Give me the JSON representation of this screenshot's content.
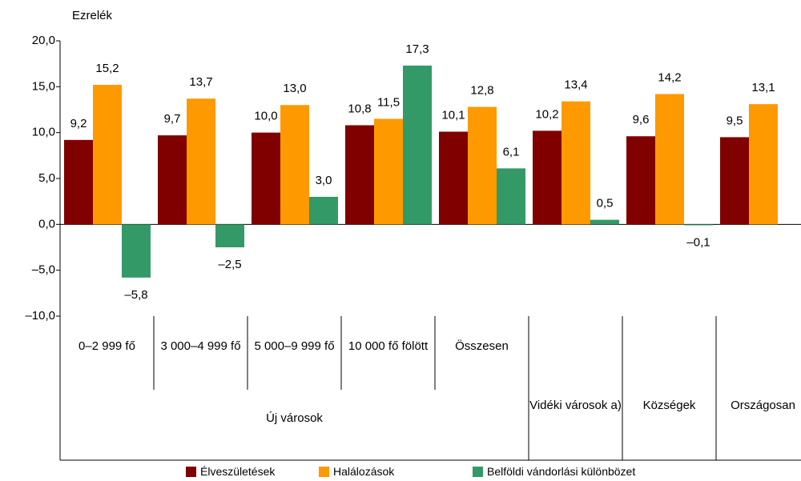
{
  "chart_data": {
    "type": "bar",
    "y_axis_title": "Ezrelék",
    "categories": [
      "0–2 999 fő",
      "3 000–4 999 fő",
      "5 000–9 999 fő",
      "10 000 fő fölött",
      "Összesen",
      null,
      null,
      null
    ],
    "groups": [
      {
        "name": "Új városok",
        "size": 5
      },
      {
        "name": "Vidéki városok a)",
        "size": 1
      },
      {
        "name": "Községek",
        "size": 1
      },
      {
        "name": "Országosan",
        "size": 1
      }
    ],
    "series": [
      {
        "name": "Élveszületések",
        "color": "#800000",
        "values": [
          9.2,
          9.7,
          10.0,
          10.8,
          10.1,
          10.2,
          9.6,
          9.5
        ],
        "value_labels": [
          "9,2",
          "9,7",
          "10,0",
          "10,8",
          "10,1",
          "10,2",
          "9,6",
          "9,5"
        ]
      },
      {
        "name": "Halálozások",
        "color": "#ff9900",
        "values": [
          15.2,
          13.7,
          13.0,
          11.5,
          12.8,
          13.4,
          14.2,
          13.1
        ],
        "value_labels": [
          "15,2",
          "13,7",
          "13,0",
          "11,5",
          "12,8",
          "13,4",
          "14,2",
          "13,1"
        ]
      },
      {
        "name": "Belföldi vándorlási különbözet",
        "color": "#339966",
        "values": [
          -5.8,
          -2.5,
          3.0,
          17.3,
          6.1,
          0.5,
          -0.1,
          null
        ],
        "value_labels": [
          "–5,8",
          "–2,5",
          "3,0",
          "17,3",
          "6,1",
          "0,5",
          "–0,1",
          null
        ]
      }
    ],
    "ylim": [
      -10,
      20
    ],
    "yticks": [
      {
        "value": -10,
        "label": "–10,0"
      },
      {
        "value": -5,
        "label": "–5,0"
      },
      {
        "value": 0,
        "label": "0,0"
      },
      {
        "value": 5,
        "label": "5,0"
      },
      {
        "value": 10,
        "label": "10,0"
      },
      {
        "value": 15,
        "label": "15,0"
      },
      {
        "value": 20,
        "label": "20,0"
      }
    ],
    "legend": "bottom"
  }
}
